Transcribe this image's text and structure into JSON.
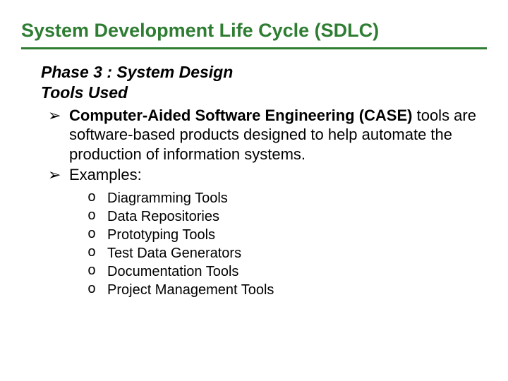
{
  "title": "System Development Life Cycle (SDLC)",
  "phase": "Phase 3 : System Design",
  "tools_used": "Tools Used",
  "bullets": [
    {
      "marker": "➢",
      "bold_lead": "Computer-Aided Software Engineering (CASE)",
      "rest": " tools are software-based products designed to help automate the production of information systems."
    },
    {
      "marker": "➢",
      "bold_lead": "",
      "rest": "Examples:"
    }
  ],
  "sub_items": [
    {
      "marker": "o",
      "text": "Diagramming Tools"
    },
    {
      "marker": "o",
      "text": "Data Repositories"
    },
    {
      "marker": "o",
      "text": "Prototyping Tools"
    },
    {
      "marker": "o",
      "text": "Test Data Generators"
    },
    {
      "marker": "o",
      "text": "Documentation Tools"
    },
    {
      "marker": "o",
      "text": "Project Management Tools"
    }
  ],
  "colors": {
    "title_color": "#2e7d32",
    "underline_color": "#2e7d32",
    "text_color": "#000000",
    "background": "#ffffff"
  },
  "typography": {
    "title_fontsize": 27,
    "phase_fontsize": 23,
    "bullet_fontsize": 22,
    "sub_fontsize": 20
  }
}
